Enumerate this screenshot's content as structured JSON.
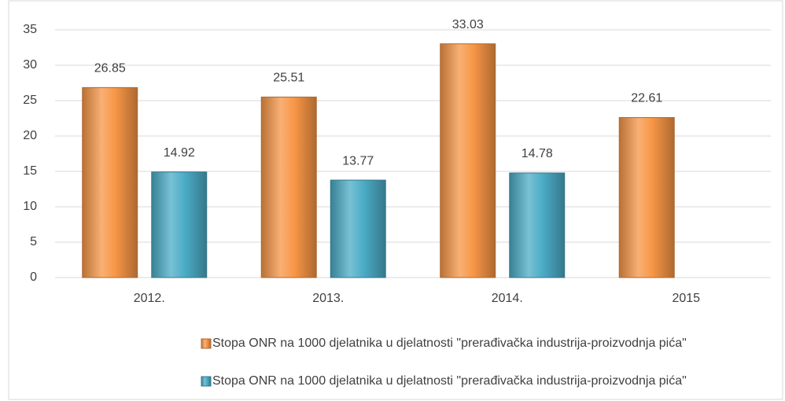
{
  "chart_data": {
    "type": "bar",
    "categories": [
      "2012.",
      "2013.",
      "2014.",
      "2015"
    ],
    "series": [
      {
        "name": "Stopa ONR na 1000 djelatnika u djelatnosti \"prerađivačka industrija-proizvodnja pića\"",
        "color": "#f79646",
        "values": [
          26.85,
          25.51,
          33.03,
          22.61
        ]
      },
      {
        "name": "Stopa ONR na 1000 djelatnika u djelatnosti \"prerađivačka industrija-proizvodnja pića\"",
        "color": "#4bacc6",
        "values": [
          14.92,
          13.77,
          14.78,
          null
        ]
      }
    ],
    "ylim": [
      0,
      35
    ],
    "yticks": [
      0,
      5,
      10,
      15,
      20,
      25,
      30,
      35
    ],
    "grid": true,
    "legend": "bottom"
  }
}
